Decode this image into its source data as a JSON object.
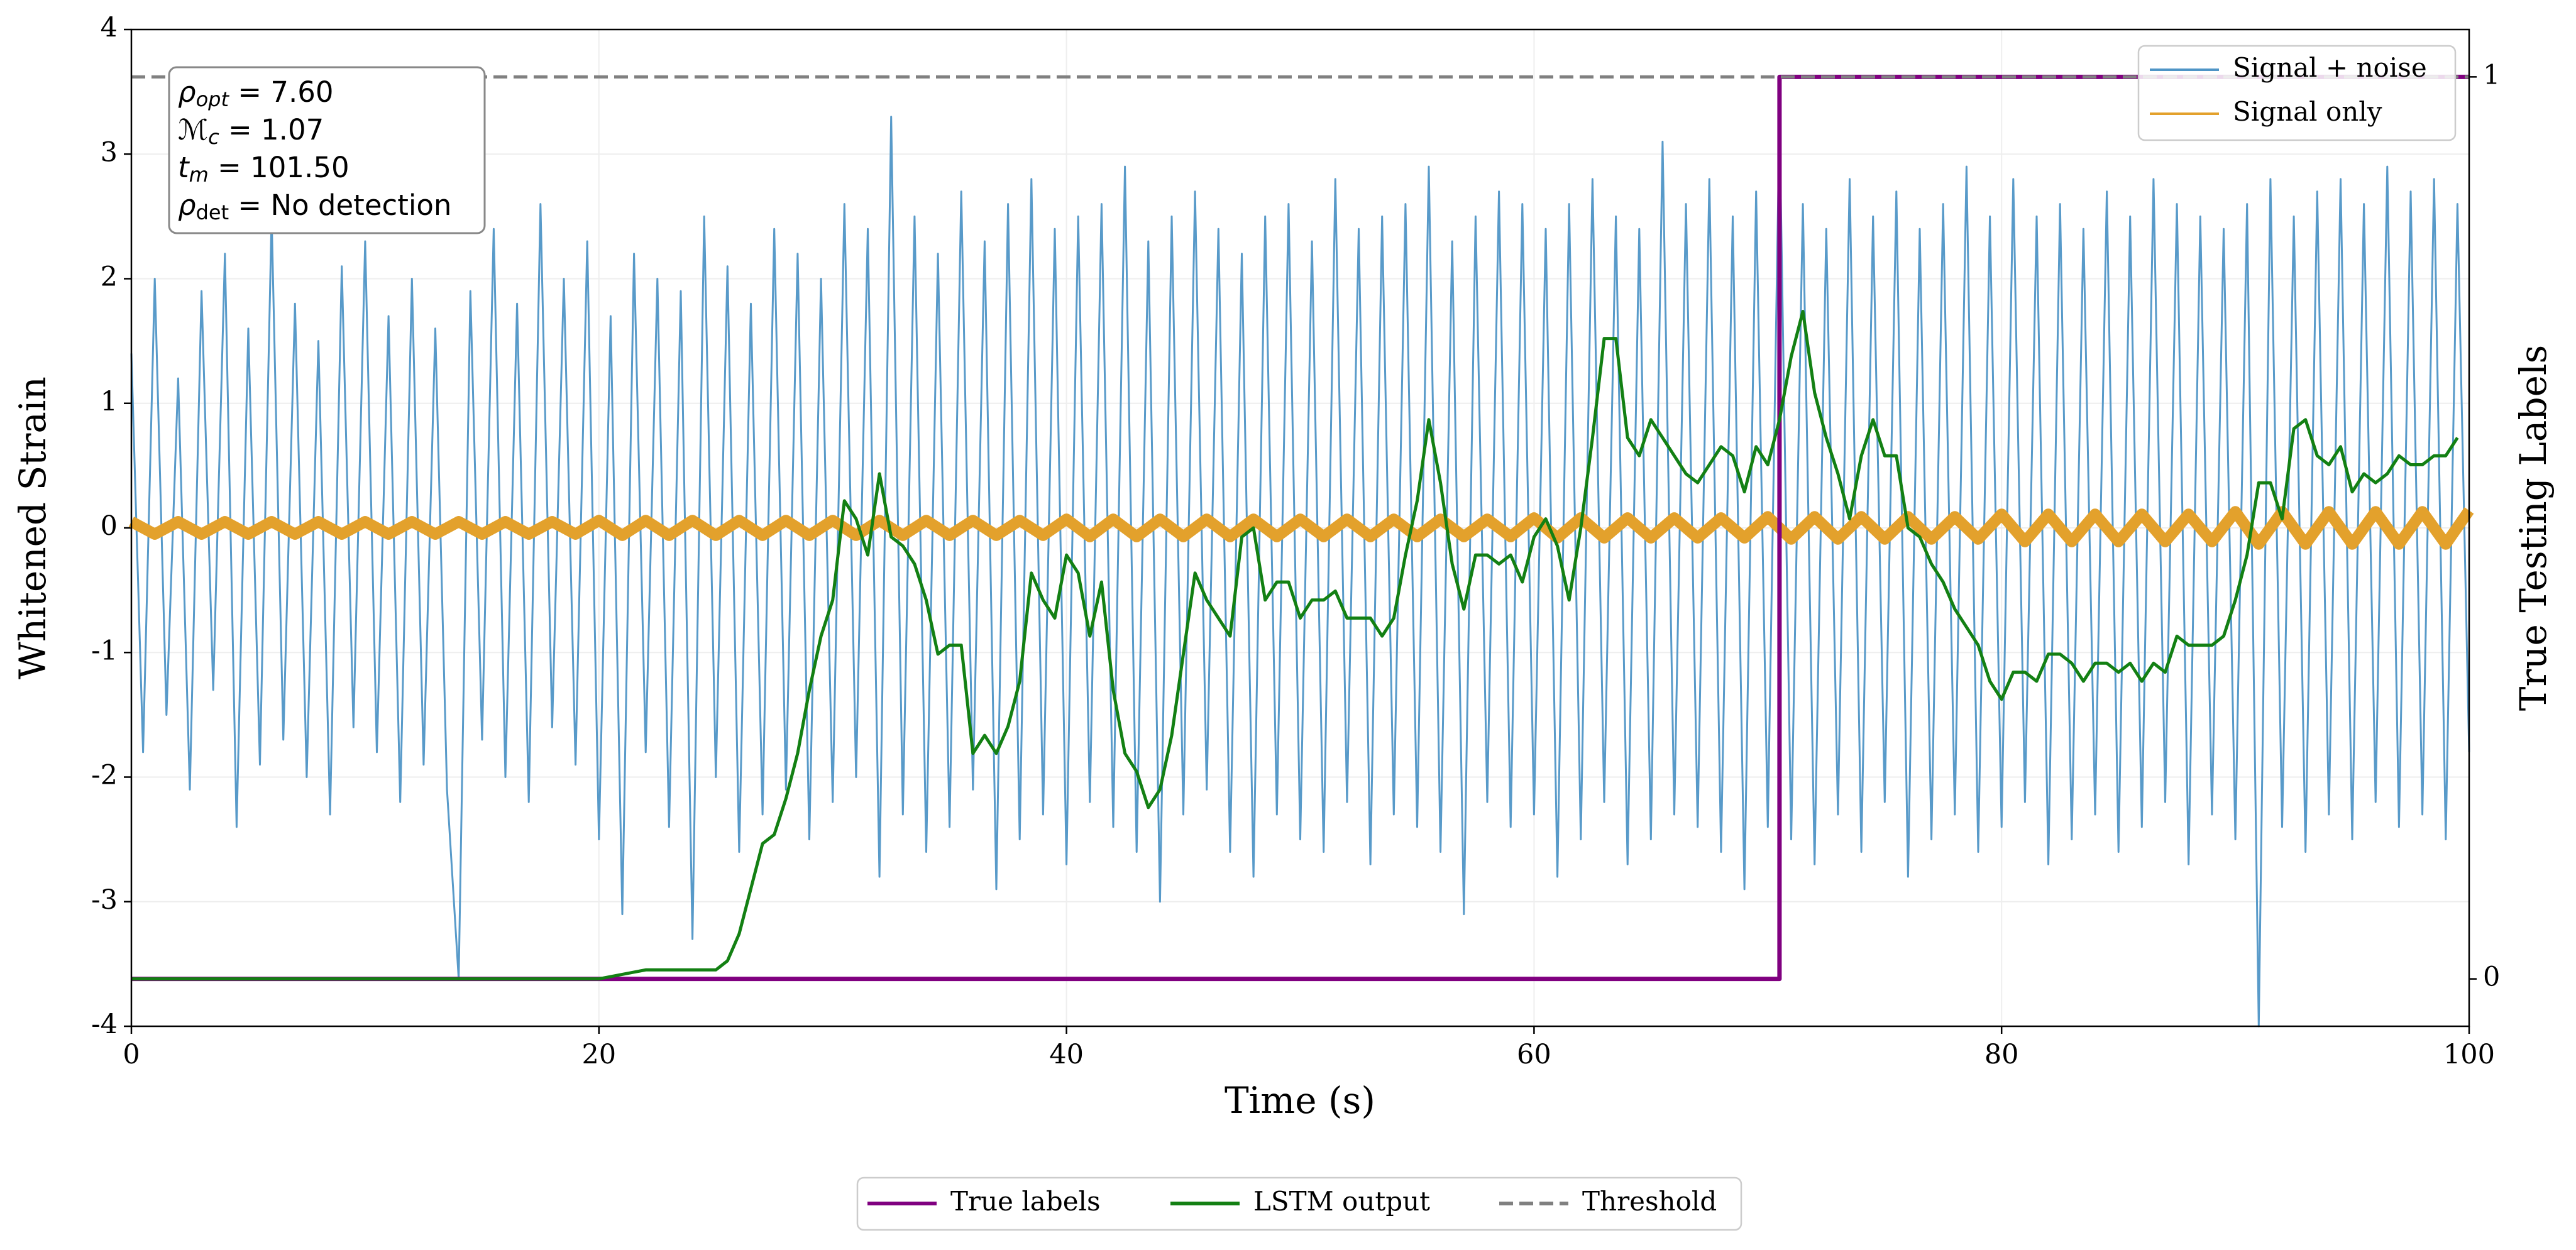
{
  "chart_data": {
    "type": "line",
    "xlabel": "Time (s)",
    "ylabel": "Whitened Strain",
    "y2label": "True Testing Labels",
    "xlim": [
      0,
      100
    ],
    "xticks": [
      0,
      20,
      40,
      60,
      80,
      100
    ],
    "ylim": [
      -4,
      4
    ],
    "yticks": [
      -4,
      -3,
      -2,
      -1,
      0,
      1,
      2,
      3,
      4
    ],
    "y2lim": [
      -0.0525,
      1.0525
    ],
    "y2ticks": [
      0,
      1
    ],
    "grid": true,
    "annotation": [
      {
        "symbol": "ρ",
        "subscript": "opt",
        "text": " = 7.60"
      },
      {
        "symbol": "ℳ",
        "subscript": "c",
        "text": " = 1.07"
      },
      {
        "symbol": "t",
        "subscript": "m",
        "text": " = 101.50"
      },
      {
        "symbol": "ρ",
        "subscript": "det",
        "text": " = No detection"
      }
    ],
    "series": [
      {
        "name": "Signal + noise",
        "color": "#4f95c6",
        "legend": "upper right",
        "x": [
          0,
          0.5,
          1,
          1.5,
          2,
          2.5,
          3,
          3.5,
          4,
          4.5,
          5,
          5.5,
          6,
          6.5,
          7,
          7.5,
          8,
          8.5,
          9,
          9.5,
          10,
          10.5,
          11,
          11.5,
          12,
          12.5,
          13,
          13.5,
          14,
          14.5,
          15,
          15.5,
          16,
          16.5,
          17,
          17.5,
          18,
          18.5,
          19,
          19.5,
          20,
          20.5,
          21,
          21.5,
          22,
          22.5,
          23,
          23.5,
          24,
          24.5,
          25,
          25.5,
          26,
          26.5,
          27,
          27.5,
          28,
          28.5,
          29,
          29.5,
          30,
          30.5,
          31,
          31.5,
          32,
          32.5,
          33,
          33.5,
          34,
          34.5,
          35,
          35.5,
          36,
          36.5,
          37,
          37.5,
          38,
          38.5,
          39,
          39.5,
          40,
          40.5,
          41,
          41.5,
          42,
          42.5,
          43,
          43.5,
          44,
          44.5,
          45,
          45.5,
          46,
          46.5,
          47,
          47.5,
          48,
          48.5,
          49,
          49.5,
          50,
          50.5,
          51,
          51.5,
          52,
          52.5,
          53,
          53.5,
          54,
          54.5,
          55,
          55.5,
          56,
          56.5,
          57,
          57.5,
          58,
          58.5,
          59,
          59.5,
          60,
          60.5,
          61,
          61.5,
          62,
          62.5,
          63,
          63.5,
          64,
          64.5,
          65,
          65.5,
          66,
          66.5,
          67,
          67.5,
          68,
          68.5,
          69,
          69.5,
          70,
          70.5,
          71,
          71.5,
          72,
          72.5,
          73,
          73.5,
          74,
          74.5,
          75,
          75.5,
          76,
          76.5,
          77,
          77.5,
          78,
          78.5,
          79,
          79.5,
          80,
          80.5,
          81,
          81.5,
          82,
          82.5,
          83,
          83.5,
          84,
          84.5,
          85,
          85.5,
          86,
          86.5,
          87,
          87.5,
          88,
          88.5,
          89,
          89.5,
          90,
          90.5,
          91,
          91.5,
          92,
          92.5,
          93,
          93.5,
          94,
          94.5,
          95,
          95.5,
          96,
          96.5,
          97,
          97.5,
          98,
          98.5,
          99,
          99.5,
          100
        ],
        "values": [
          1.4,
          -1.8,
          2.0,
          -1.5,
          1.2,
          -2.1,
          1.9,
          -1.3,
          2.2,
          -2.4,
          1.6,
          -1.9,
          2.5,
          -1.7,
          1.8,
          -2.0,
          1.5,
          -2.3,
          2.1,
          -1.6,
          2.3,
          -1.8,
          1.7,
          -2.2,
          2.0,
          -1.9,
          1.6,
          -2.1,
          -3.62,
          1.9,
          -1.7,
          2.4,
          -2.0,
          1.8,
          -2.2,
          2.6,
          -1.6,
          2.0,
          -1.9,
          2.3,
          -2.5,
          1.7,
          -3.1,
          2.2,
          -1.8,
          2.0,
          -2.4,
          1.9,
          -3.3,
          2.5,
          -2.0,
          2.1,
          -2.6,
          1.8,
          -2.3,
          2.4,
          -2.1,
          2.2,
          -2.5,
          2.0,
          -2.2,
          2.6,
          -2.0,
          2.4,
          -2.8,
          3.3,
          -2.3,
          2.5,
          -2.6,
          2.2,
          -2.4,
          2.7,
          -2.1,
          2.3,
          -2.9,
          2.6,
          -2.5,
          2.8,
          -2.3,
          2.4,
          -2.7,
          2.5,
          -2.2,
          2.6,
          -2.4,
          2.9,
          -2.6,
          2.3,
          -3.0,
          2.5,
          -2.3,
          2.7,
          -2.1,
          2.4,
          -2.6,
          2.2,
          -2.8,
          2.5,
          -2.3,
          2.6,
          -2.5,
          2.3,
          -2.6,
          2.8,
          -2.2,
          2.4,
          -2.7,
          2.5,
          -2.3,
          2.6,
          -2.4,
          2.9,
          -2.6,
          2.3,
          -3.1,
          2.5,
          -2.2,
          2.7,
          -2.4,
          2.6,
          -2.3,
          2.4,
          -2.8,
          2.6,
          -2.5,
          2.8,
          -2.2,
          2.5,
          -2.7,
          2.4,
          -2.5,
          3.1,
          -2.3,
          2.6,
          -2.4,
          2.8,
          -2.6,
          2.5,
          -2.9,
          2.7,
          -2.4,
          3.3,
          -2.5,
          2.6,
          -2.7,
          2.4,
          -2.3,
          2.8,
          -2.6,
          2.5,
          -2.2,
          2.7,
          -2.8,
          2.4,
          -2.5,
          2.6,
          -2.3,
          2.9,
          -2.6,
          2.5,
          -2.4,
          2.8,
          -2.2,
          2.5,
          -2.7,
          2.6,
          -2.5,
          2.4,
          -2.3,
          2.7,
          -2.6,
          2.5,
          -2.4,
          2.8,
          -2.2,
          2.6,
          -2.7,
          2.5,
          -2.3,
          2.4,
          -2.5,
          2.6,
          -4.0,
          2.8,
          -2.4,
          2.5,
          -2.6,
          2.7,
          -2.3,
          2.8,
          -2.5,
          2.6,
          -2.2,
          2.9,
          -2.4,
          2.7,
          -2.3,
          2.8,
          -2.5,
          2.6,
          -1.8
        ]
      },
      {
        "name": "Signal only",
        "color": "#e3a12c",
        "legend": "upper right",
        "x": [
          0,
          1,
          2,
          3,
          4,
          5,
          6,
          7,
          8,
          9,
          10,
          11,
          12,
          13,
          14,
          15,
          16,
          17,
          18,
          19,
          20,
          21,
          22,
          23,
          24,
          25,
          26,
          27,
          28,
          29,
          30,
          31,
          32,
          33,
          34,
          35,
          36,
          37,
          38,
          39,
          40,
          41,
          42,
          43,
          44,
          45,
          46,
          47,
          48,
          49,
          50,
          51,
          52,
          53,
          54,
          55,
          56,
          57,
          58,
          59,
          60,
          61,
          62,
          63,
          64,
          65,
          66,
          67,
          68,
          69,
          70,
          71,
          72,
          73,
          74,
          75,
          76,
          77,
          78,
          79,
          80,
          81,
          82,
          83,
          84,
          85,
          86,
          87,
          88,
          89,
          90,
          91,
          92,
          93,
          94,
          95,
          96,
          97,
          98,
          99,
          100
        ],
        "values": [
          0.05,
          -0.05,
          0.05,
          -0.05,
          0.05,
          -0.05,
          0.05,
          -0.05,
          0.05,
          -0.05,
          0.05,
          -0.05,
          0.05,
          -0.05,
          0.05,
          -0.05,
          0.05,
          -0.05,
          0.05,
          -0.05,
          0.06,
          -0.06,
          0.06,
          -0.06,
          0.06,
          -0.06,
          0.06,
          -0.06,
          0.06,
          -0.06,
          0.06,
          -0.06,
          0.06,
          -0.06,
          0.06,
          -0.06,
          0.06,
          -0.06,
          0.06,
          -0.06,
          0.07,
          -0.07,
          0.07,
          -0.07,
          0.07,
          -0.07,
          0.07,
          -0.07,
          0.07,
          -0.07,
          0.07,
          -0.07,
          0.07,
          -0.07,
          0.07,
          -0.07,
          0.07,
          -0.07,
          0.07,
          -0.07,
          0.08,
          -0.08,
          0.08,
          -0.08,
          0.08,
          -0.08,
          0.08,
          -0.08,
          0.08,
          -0.08,
          0.09,
          -0.09,
          0.09,
          -0.09,
          0.09,
          -0.09,
          0.09,
          -0.09,
          0.09,
          -0.09,
          0.11,
          -0.11,
          0.11,
          -0.11,
          0.11,
          -0.11,
          0.11,
          -0.11,
          0.11,
          -0.11,
          0.13,
          -0.13,
          0.13,
          -0.13,
          0.13,
          -0.13,
          0.13,
          -0.13,
          0.13,
          -0.13,
          0.14
        ]
      },
      {
        "name": "True labels",
        "color": "#800080",
        "legend": "bottom",
        "axis": "y2",
        "x": [
          0,
          70.5,
          70.5,
          100
        ],
        "values": [
          0,
          0,
          1,
          1
        ]
      },
      {
        "name": "LSTM output",
        "color": "#138013",
        "legend": "bottom",
        "axis": "y2",
        "x": [
          0,
          14,
          20,
          22,
          24,
          25,
          25.5,
          26,
          26.5,
          27,
          27.5,
          28,
          28.5,
          29,
          29.5,
          30,
          30.5,
          31,
          31.5,
          32,
          32.5,
          33,
          33.5,
          34,
          34.5,
          35,
          35.5,
          36,
          36.5,
          37,
          37.5,
          38,
          38.5,
          39,
          39.5,
          40,
          40.5,
          41,
          41.5,
          42,
          42.5,
          43,
          43.5,
          44,
          44.5,
          45,
          45.5,
          46,
          46.5,
          47,
          47.5,
          48,
          48.5,
          49,
          49.5,
          50,
          50.5,
          51,
          51.5,
          52,
          52.5,
          53,
          53.5,
          54,
          54.5,
          55,
          55.5,
          56,
          56.5,
          57,
          57.5,
          58,
          58.5,
          59,
          59.5,
          60,
          60.5,
          61,
          61.5,
          62,
          62.5,
          63,
          63.5,
          64,
          64.5,
          65,
          65.5,
          66,
          66.5,
          67,
          67.5,
          68,
          68.5,
          69,
          69.5,
          70,
          70.5,
          71,
          71.5,
          72,
          72.5,
          73,
          73.5,
          74,
          74.5,
          75,
          75.5,
          76,
          76.5,
          77,
          77.5,
          78,
          78.5,
          79,
          79.5,
          80,
          80.5,
          81,
          81.5,
          82,
          82.5,
          83,
          83.5,
          84,
          84.5,
          85,
          85.5,
          86,
          86.5,
          87,
          87.5,
          88,
          88.5,
          89,
          89.5,
          90,
          90.5,
          91,
          91.5,
          92,
          92.5,
          93,
          93.5,
          94,
          94.5,
          95,
          95.5,
          96,
          96.5,
          97,
          97.5,
          98,
          98.5,
          99,
          99.5
        ],
        "values": [
          0,
          0,
          0,
          0.01,
          0.01,
          0.01,
          0.02,
          0.05,
          0.1,
          0.15,
          0.16,
          0.2,
          0.25,
          0.32,
          0.38,
          0.42,
          0.53,
          0.51,
          0.47,
          0.56,
          0.49,
          0.48,
          0.46,
          0.42,
          0.36,
          0.37,
          0.37,
          0.25,
          0.27,
          0.25,
          0.28,
          0.33,
          0.45,
          0.42,
          0.4,
          0.47,
          0.45,
          0.38,
          0.44,
          0.32,
          0.25,
          0.23,
          0.19,
          0.21,
          0.27,
          0.36,
          0.45,
          0.42,
          0.4,
          0.38,
          0.49,
          0.5,
          0.42,
          0.44,
          0.44,
          0.4,
          0.42,
          0.42,
          0.43,
          0.4,
          0.4,
          0.4,
          0.38,
          0.4,
          0.47,
          0.53,
          0.62,
          0.55,
          0.46,
          0.41,
          0.47,
          0.47,
          0.46,
          0.47,
          0.44,
          0.49,
          0.51,
          0.48,
          0.42,
          0.5,
          0.6,
          0.71,
          0.71,
          0.6,
          0.58,
          0.62,
          0.6,
          0.58,
          0.56,
          0.55,
          0.57,
          0.59,
          0.58,
          0.54,
          0.59,
          0.57,
          0.62,
          0.69,
          0.74,
          0.65,
          0.6,
          0.56,
          0.51,
          0.58,
          0.62,
          0.58,
          0.58,
          0.5,
          0.49,
          0.46,
          0.44,
          0.41,
          0.39,
          0.37,
          0.33,
          0.31,
          0.34,
          0.34,
          0.33,
          0.36,
          0.36,
          0.35,
          0.33,
          0.35,
          0.35,
          0.34,
          0.35,
          0.33,
          0.35,
          0.34,
          0.38,
          0.37,
          0.37,
          0.37,
          0.38,
          0.42,
          0.47,
          0.55,
          0.55,
          0.51,
          0.61,
          0.62,
          0.58,
          0.57,
          0.59,
          0.54,
          0.56,
          0.55,
          0.56,
          0.58,
          0.57,
          0.57,
          0.58,
          0.58,
          0.6
        ]
      },
      {
        "name": "Threshold",
        "color": "#808080",
        "legend": "bottom",
        "axis": "y2",
        "linestyle": "dashed",
        "x": [
          0,
          100
        ],
        "values": [
          1,
          1
        ]
      }
    ]
  }
}
